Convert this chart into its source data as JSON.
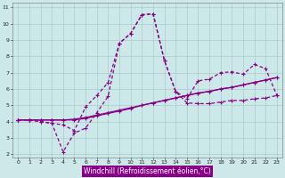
{
  "xlabel": "Windchill (Refroidissement éolien,°C)",
  "bg_color": "#cce8e8",
  "grid_color": "#aacccc",
  "line_color": "#880088",
  "xlim": [
    -0.5,
    23.5
  ],
  "ylim": [
    1.8,
    11.3
  ],
  "xticks": [
    0,
    1,
    2,
    3,
    4,
    5,
    6,
    7,
    8,
    9,
    10,
    11,
    12,
    13,
    14,
    15,
    16,
    17,
    18,
    19,
    20,
    21,
    22,
    23
  ],
  "yticks": [
    2,
    3,
    4,
    5,
    6,
    7,
    8,
    9,
    10,
    11
  ],
  "line1_x": [
    0,
    1,
    2,
    3,
    4,
    5,
    6,
    7,
    8,
    9,
    10,
    11,
    12,
    13,
    14,
    15,
    16,
    17,
    18,
    19,
    20,
    21,
    22,
    23
  ],
  "line1_y": [
    4.1,
    4.1,
    4.1,
    4.1,
    4.1,
    4.1,
    4.2,
    4.35,
    4.5,
    4.65,
    4.8,
    5.0,
    5.15,
    5.3,
    5.45,
    5.6,
    5.75,
    5.85,
    6.0,
    6.1,
    6.25,
    6.4,
    6.55,
    6.7
  ],
  "line2_x": [
    0,
    1,
    2,
    3,
    4,
    5,
    6,
    7,
    8,
    9,
    10,
    11,
    12,
    13,
    14,
    15,
    16,
    17,
    18,
    19,
    20,
    21,
    22,
    23
  ],
  "line2_y": [
    4.1,
    4.1,
    4.1,
    4.1,
    4.1,
    4.15,
    4.25,
    4.4,
    4.55,
    4.7,
    4.85,
    5.0,
    5.15,
    5.3,
    5.45,
    5.6,
    5.75,
    5.85,
    6.0,
    6.1,
    6.25,
    6.4,
    6.55,
    6.7
  ],
  "curve1_x": [
    0,
    1,
    2,
    3,
    4,
    5,
    6,
    7,
    8,
    9,
    10,
    11,
    12,
    13,
    14,
    15,
    16,
    17,
    18,
    19,
    20,
    21,
    22,
    23
  ],
  "curve1_y": [
    4.1,
    4.1,
    4.0,
    3.9,
    2.15,
    3.3,
    3.6,
    4.55,
    5.55,
    8.8,
    9.4,
    10.55,
    10.6,
    7.75,
    5.85,
    5.15,
    5.1,
    5.1,
    5.2,
    5.3,
    5.3,
    5.4,
    5.45,
    5.6
  ],
  "curve2_x": [
    0,
    1,
    2,
    3,
    4,
    5,
    6,
    7,
    8,
    9,
    10,
    11,
    12,
    13,
    14,
    15,
    16,
    17,
    18,
    19,
    20,
    21,
    22,
    23
  ],
  "curve2_y": [
    4.1,
    4.1,
    4.0,
    3.9,
    3.8,
    3.45,
    4.9,
    5.6,
    6.4,
    8.8,
    9.4,
    10.55,
    10.6,
    7.75,
    5.85,
    5.4,
    6.5,
    6.6,
    7.0,
    7.05,
    6.9,
    7.5,
    7.25,
    5.6
  ]
}
